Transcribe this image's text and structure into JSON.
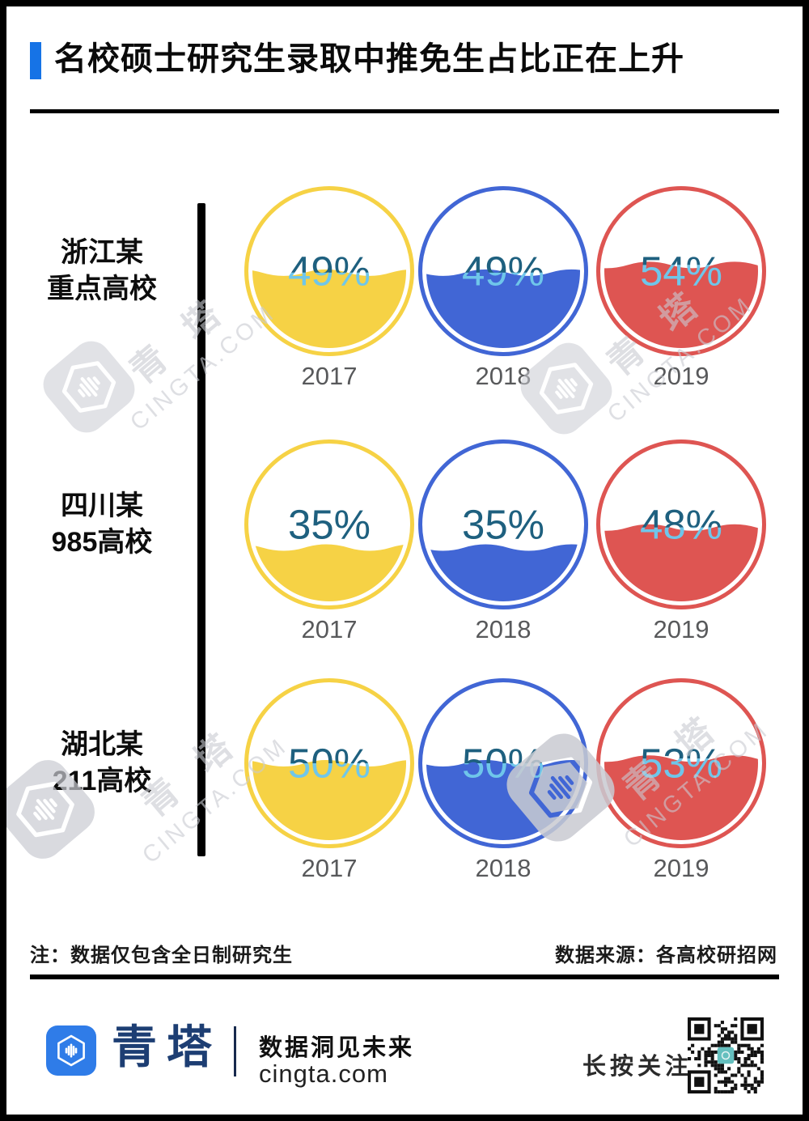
{
  "header": {
    "title": "名校硕士研究生录取中推免生占比正在上升",
    "accent_color": "#1673E6"
  },
  "chart_data": {
    "type": "liquid_fill_gauge_grid",
    "title": "名校硕士研究生录取中推免生占比正在上升",
    "years": [
      "2017",
      "2018",
      "2019"
    ],
    "year_colors": [
      "#F6D245",
      "#4166D5",
      "#DE5552"
    ],
    "rows": [
      {
        "label_lines": [
          "浙江某",
          "重点高校"
        ],
        "values_percent": [
          49,
          49,
          54
        ]
      },
      {
        "label_lines": [
          "四川某",
          "985高校"
        ],
        "values_percent": [
          35,
          35,
          48
        ]
      },
      {
        "label_lines": [
          "湖北某",
          "211高校"
        ],
        "values_percent": [
          50,
          50,
          53
        ]
      }
    ],
    "value_suffix": "%",
    "value_range": [
      0,
      100
    ],
    "label_color_above_water": "#1E607F",
    "label_color_below_water": "#6FC6EA",
    "year_label_color": "#58595B"
  },
  "notes": {
    "left": "注：数据仅包含全日制研究生",
    "right": "数据来源：各高校研招网"
  },
  "footer": {
    "brand_cn": "青塔",
    "tagline": "数据洞见未来",
    "website": "cingta.com",
    "qr_caption": "长按关注",
    "brand_blue": "#2F7CE8",
    "brand_navy": "#1D3E73",
    "qr_center_teal": "#64BFBE"
  },
  "watermark": {
    "text_cn": "青 塔",
    "text_en": "CINGTA.COM"
  }
}
